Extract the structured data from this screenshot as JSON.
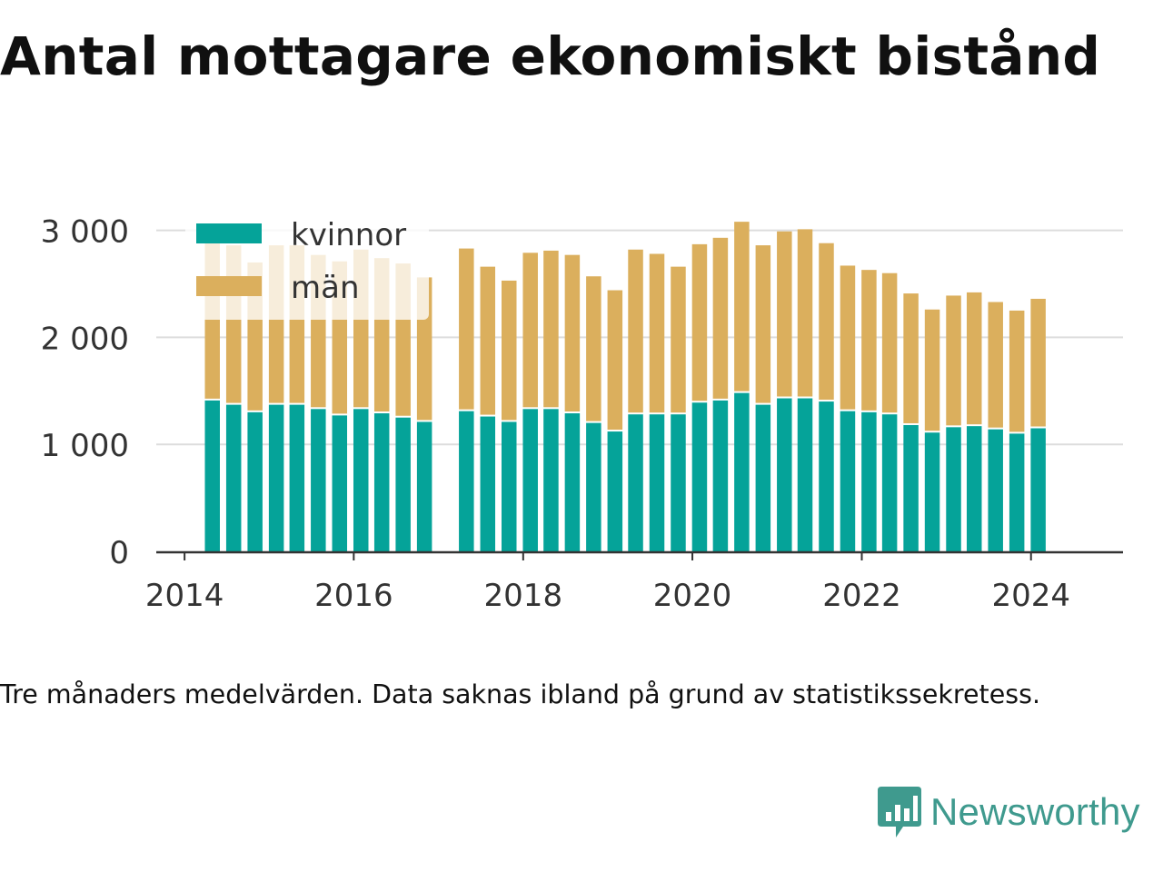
{
  "title": "Antal mottagare ekonomiskt bistånd",
  "caption": "Tre månaders medelvärden. Data saknas ibland på grund av statistikssekretess.",
  "brand": {
    "name": "Newsworthy",
    "logo_icon": "bar-chart-speech-bubble-icon"
  },
  "colors": {
    "kvinnor": "#05a399",
    "man": "#dbaf5d",
    "grid": "#dddddd",
    "axis": "#333333",
    "text": "#333333",
    "brand": "#3f9a8e"
  },
  "chart_data": {
    "type": "bar",
    "stacked": true,
    "title": "Antal mottagare ekonomiskt bistånd",
    "xlabel": "",
    "ylabel": "",
    "legend_position": "top-left",
    "grid": "horizontal",
    "ylim": [
      0,
      3200
    ],
    "yticks": [
      0,
      1000,
      2000,
      3000
    ],
    "ytick_labels": [
      "0",
      "1 000",
      "2 000",
      "3 000"
    ],
    "xlim": [
      "2013-09-01",
      "2025-02-01"
    ],
    "xticks": [
      "2014-01-01",
      "2016-01-01",
      "2018-01-01",
      "2020-01-01",
      "2022-01-01",
      "2024-01-01"
    ],
    "xtick_labels": [
      "2014",
      "2016",
      "2018",
      "2020",
      "2022",
      "2024"
    ],
    "periods": [
      "2014-05",
      "2014-08",
      "2014-11",
      "2015-02",
      "2015-05",
      "2015-08",
      "2015-11",
      "2016-02",
      "2016-05",
      "2016-08",
      "2016-11",
      "2017-02",
      "2017-05",
      "2017-08",
      "2017-11",
      "2018-02",
      "2018-05",
      "2018-08",
      "2018-11",
      "2019-02",
      "2019-05",
      "2019-08",
      "2019-11",
      "2020-02",
      "2020-05",
      "2020-08",
      "2020-11",
      "2021-02",
      "2021-05",
      "2021-08",
      "2021-11",
      "2022-02",
      "2022-05",
      "2022-08",
      "2022-11",
      "2023-02",
      "2023-05",
      "2023-08",
      "2023-11",
      "2024-02"
    ],
    "series": [
      {
        "name": "kvinnor",
        "values": [
          1410,
          1370,
          1300,
          1370,
          1370,
          1330,
          1270,
          1330,
          1290,
          1250,
          1210,
          null,
          1310,
          1260,
          1210,
          1330,
          1330,
          1290,
          1200,
          1120,
          1280,
          1280,
          1280,
          1390,
          1410,
          1480,
          1370,
          1430,
          1430,
          1400,
          1310,
          1300,
          1280,
          1180,
          1110,
          1160,
          1170,
          1140,
          1100,
          1150
        ]
      },
      {
        "name": "män",
        "values": [
          1510,
          1490,
          1400,
          1490,
          1490,
          1440,
          1440,
          1490,
          1450,
          1440,
          1350,
          null,
          1520,
          1400,
          1320,
          1460,
          1480,
          1480,
          1370,
          1320,
          1540,
          1500,
          1380,
          1480,
          1520,
          1600,
          1490,
          1560,
          1580,
          1480,
          1360,
          1330,
          1320,
          1230,
          1150,
          1230,
          1250,
          1190,
          1150,
          1210
        ]
      }
    ]
  }
}
